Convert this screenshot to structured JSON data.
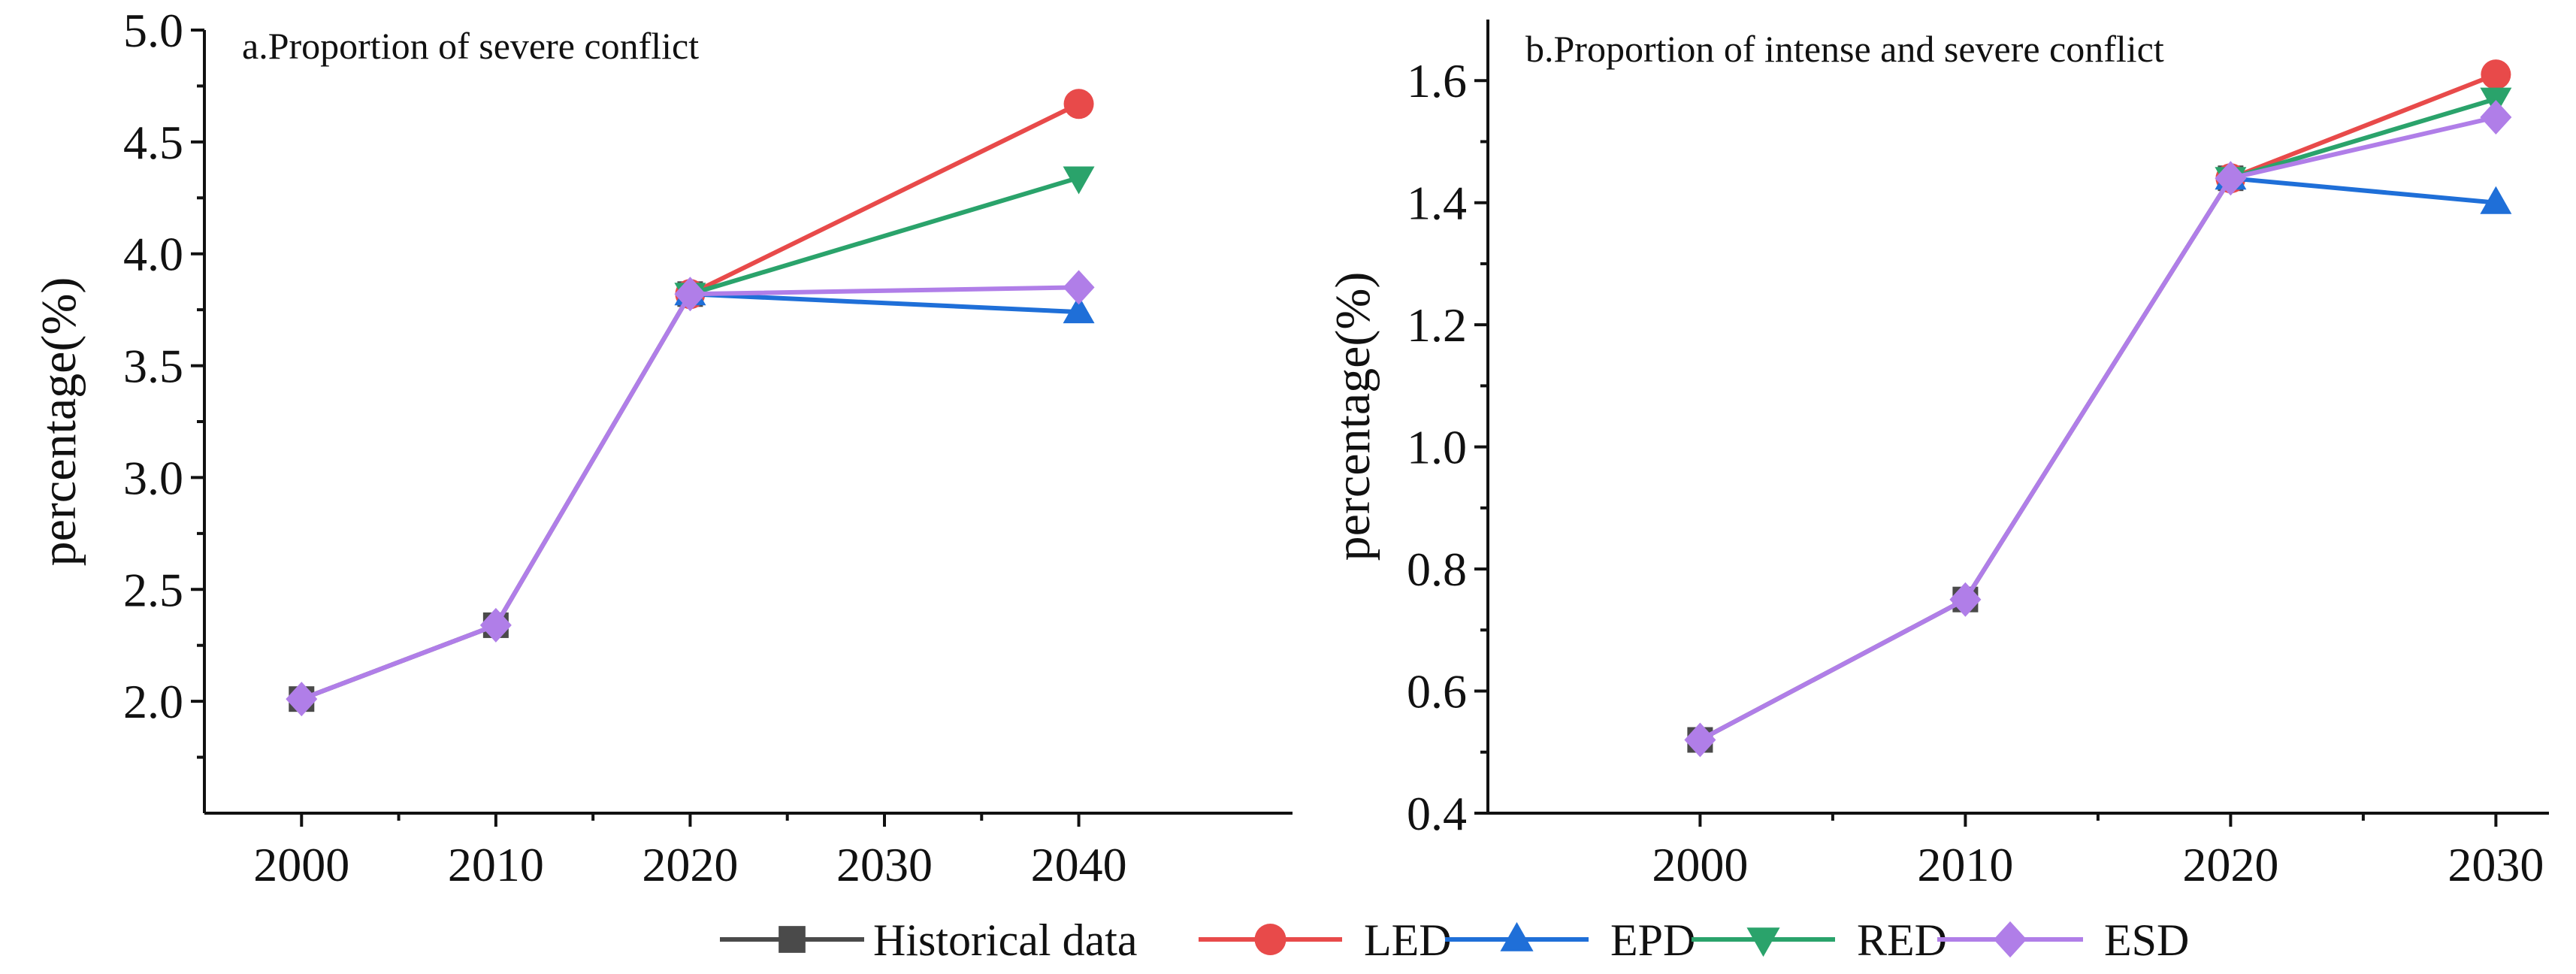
{
  "chart_data": [
    {
      "type": "line",
      "title": "a.Proportion of severe conflict",
      "xlabel": "",
      "ylabel": "percentage(%)",
      "x": [
        2000,
        2010,
        2020,
        2030,
        2040
      ],
      "xticks": [
        "2000",
        "2010",
        "2020",
        "2030",
        "2040"
      ],
      "ylim": [
        1.5,
        5.0
      ],
      "yticks": [
        "2.0",
        "2.5",
        "3.0",
        "3.5",
        "4.0",
        "4.5",
        "5.0"
      ],
      "series": [
        {
          "name": "Historical data",
          "points": [
            [
              2000,
              2.01
            ],
            [
              2010,
              2.34
            ],
            [
              2020,
              3.82
            ]
          ]
        },
        {
          "name": "LED",
          "points": [
            [
              2020,
              3.82
            ],
            [
              2040,
              4.67
            ]
          ]
        },
        {
          "name": "EPD",
          "points": [
            [
              2020,
              3.82
            ],
            [
              2040,
              3.74
            ]
          ]
        },
        {
          "name": "RED",
          "points": [
            [
              2020,
              3.82
            ],
            [
              2040,
              4.34
            ]
          ]
        },
        {
          "name": "ESD",
          "points": [
            [
              2000,
              2.01
            ],
            [
              2010,
              2.34
            ],
            [
              2020,
              3.82
            ],
            [
              2040,
              3.85
            ]
          ]
        }
      ]
    },
    {
      "type": "line",
      "title": "b.Proportion of intense and severe conflict",
      "xlabel": "",
      "ylabel": "percentage(%)",
      "x": [
        2000,
        2010,
        2020,
        2030
      ],
      "xticks": [
        "2000",
        "2010",
        "2020",
        "2030"
      ],
      "ylim": [
        0.4,
        1.7
      ],
      "yticks": [
        "0.4",
        "0.6",
        "0.8",
        "1.0",
        "1.2",
        "1.4",
        "1.6"
      ],
      "series": [
        {
          "name": "Historical data",
          "points": [
            [
              2000,
              0.52
            ],
            [
              2010,
              0.75
            ],
            [
              2020,
              1.44
            ]
          ]
        },
        {
          "name": "LED",
          "points": [
            [
              2020,
              1.44
            ],
            [
              2030,
              1.61
            ]
          ]
        },
        {
          "name": "EPD",
          "points": [
            [
              2020,
              1.44
            ],
            [
              2030,
              1.4
            ]
          ]
        },
        {
          "name": "RED",
          "points": [
            [
              2020,
              1.44
            ],
            [
              2030,
              1.57
            ]
          ]
        },
        {
          "name": "ESD",
          "points": [
            [
              2000,
              0.52
            ],
            [
              2010,
              0.75
            ],
            [
              2020,
              1.44
            ],
            [
              2030,
              1.54
            ]
          ]
        }
      ]
    }
  ],
  "legend": {
    "items": [
      {
        "name": "Historical data",
        "color": "#4a4a4a",
        "marker": "square"
      },
      {
        "name": "LED",
        "color": "#e84a4a",
        "marker": "circle"
      },
      {
        "name": "EPD",
        "color": "#1f6fd8",
        "marker": "triangle-up"
      },
      {
        "name": "RED",
        "color": "#2aa36b",
        "marker": "triangle-down"
      },
      {
        "name": "ESD",
        "color": "#b07ee8",
        "marker": "diamond"
      }
    ]
  }
}
